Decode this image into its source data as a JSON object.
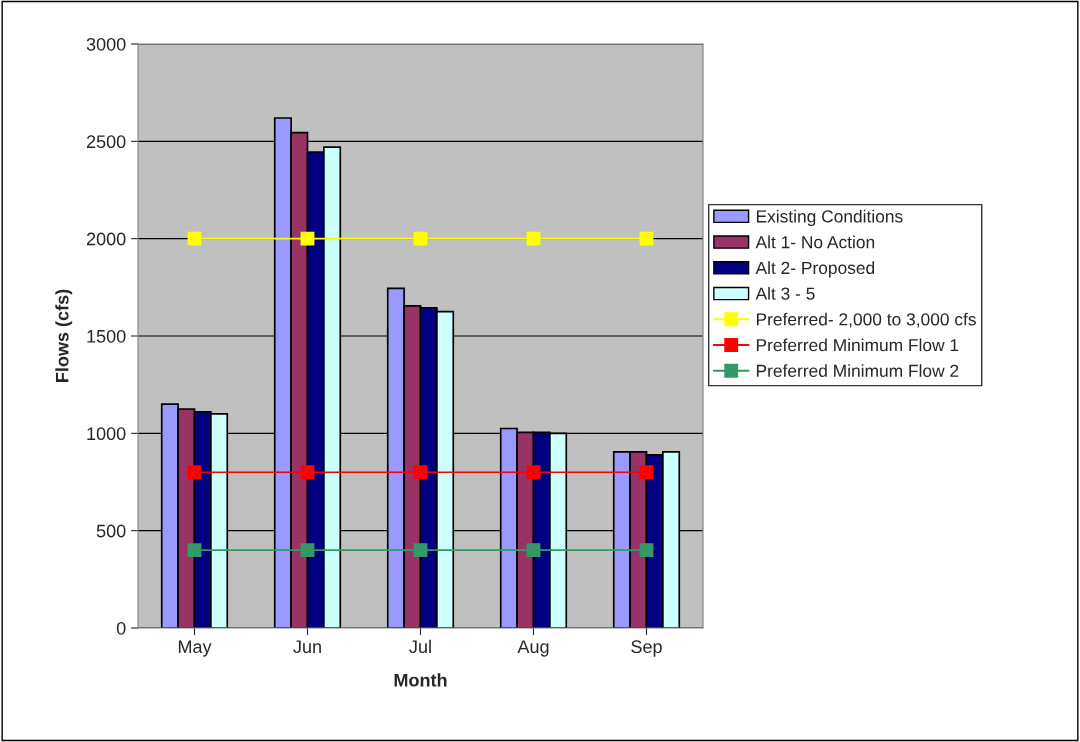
{
  "chart_data": {
    "type": "bar",
    "xlabel": "Month",
    "ylabel": "Flows (cfs)",
    "categories": [
      "May",
      "Jun",
      "Jul",
      "Aug",
      "Sep"
    ],
    "series": [
      {
        "name": "Existing Conditions",
        "color": "#9999ff",
        "values": [
          1150,
          2620,
          1745,
          1025,
          905
        ]
      },
      {
        "name": "Alt 1- No Action",
        "color": "#993366",
        "values": [
          1125,
          2545,
          1655,
          1005,
          905
        ]
      },
      {
        "name": "Alt 2- Proposed",
        "color": "#000080",
        "values": [
          1110,
          2445,
          1645,
          1005,
          890
        ]
      },
      {
        "name": "Alt 3 - 5",
        "color": "#ccffff",
        "values": [
          1100,
          2470,
          1625,
          1000,
          905
        ]
      },
      {
        "name": "Preferred- 2,000 to 3,000 cfs",
        "type": "line",
        "color": "#ffff00",
        "marker": "square",
        "values": [
          2000,
          2000,
          2000,
          2000,
          2000
        ]
      },
      {
        "name": "Preferred Minimum Flow 1",
        "type": "line",
        "color": "#ff0000",
        "marker": "square",
        "values": [
          800,
          800,
          800,
          800,
          800
        ]
      },
      {
        "name": "Preferred Minimum Flow 2",
        "type": "line",
        "color": "#339966",
        "marker": "square",
        "values": [
          400,
          400,
          400,
          400,
          400
        ]
      }
    ],
    "ylim": [
      0,
      3000
    ],
    "yticks": [
      0,
      500,
      1000,
      1500,
      2000,
      2500,
      3000
    ],
    "grid": "y",
    "legend": "right"
  }
}
